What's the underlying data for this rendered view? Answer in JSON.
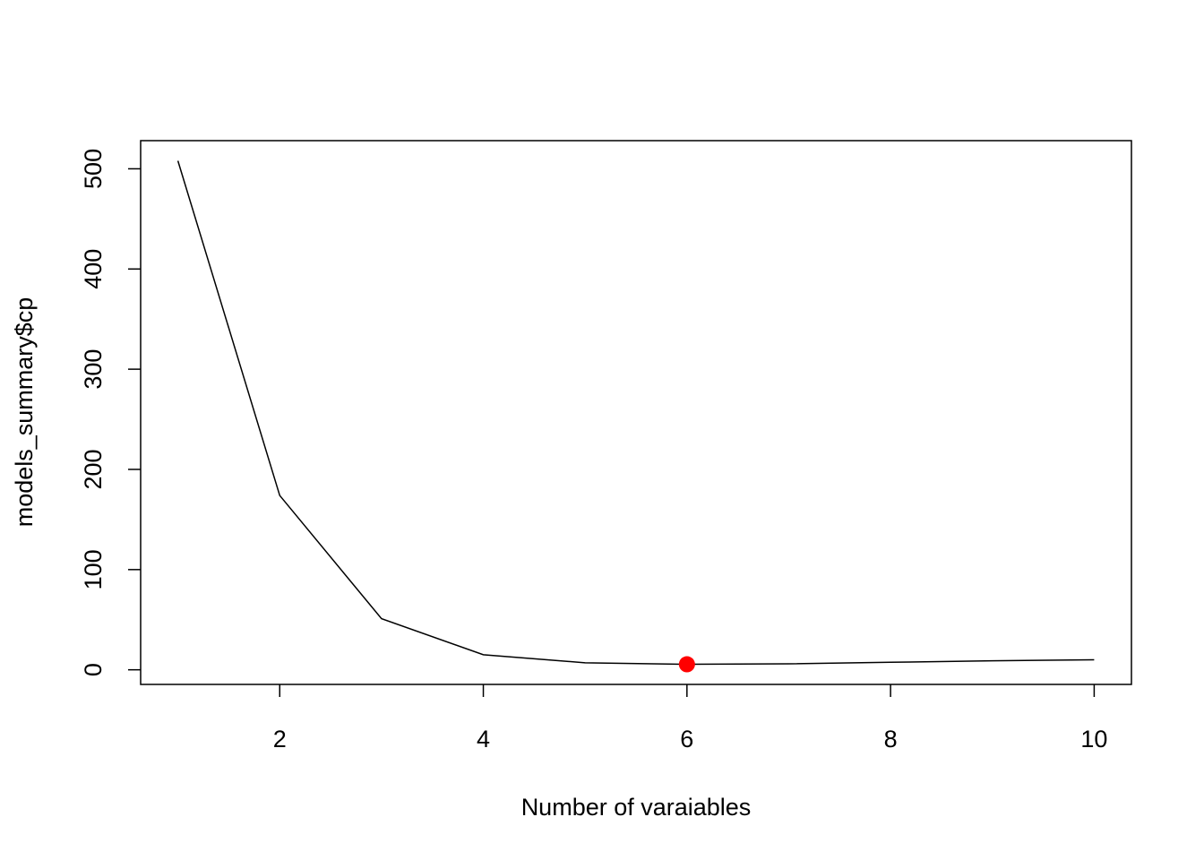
{
  "chart_data": {
    "type": "line",
    "x_label": "Number of varaiables",
    "y_label": "models_summary$cp",
    "x": [
      1,
      2,
      3,
      4,
      5,
      6,
      7,
      8,
      9,
      10
    ],
    "series": [
      {
        "color": "#000000",
        "values": [
          508,
          174,
          51,
          15,
          7,
          5.5,
          6,
          7.5,
          9,
          10
        ]
      }
    ],
    "highlight": {
      "index": 5,
      "color": "#ff0000"
    },
    "xlim": [
      0.634,
      10.366
    ],
    "ylim": [
      -14.6,
      528.1
    ],
    "xticks": [
      2,
      4,
      6,
      8,
      10
    ],
    "yticks": [
      0,
      100,
      200,
      300,
      400,
      500
    ]
  }
}
